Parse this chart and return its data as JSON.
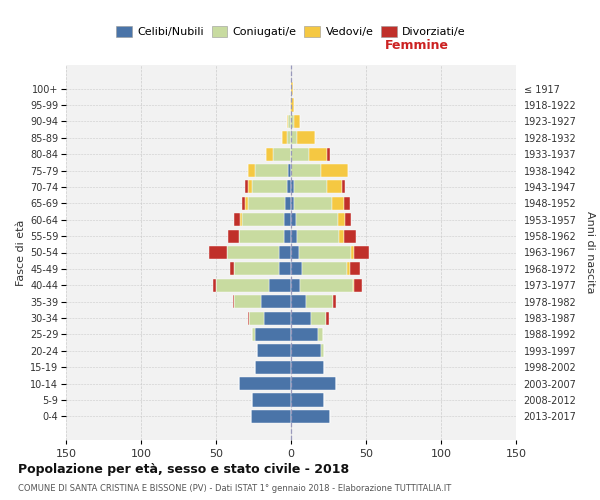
{
  "age_groups": [
    "0-4",
    "5-9",
    "10-14",
    "15-19",
    "20-24",
    "25-29",
    "30-34",
    "35-39",
    "40-44",
    "45-49",
    "50-54",
    "55-59",
    "60-64",
    "65-69",
    "70-74",
    "75-79",
    "80-84",
    "85-89",
    "90-94",
    "95-99",
    "100+"
  ],
  "birth_years": [
    "2013-2017",
    "2008-2012",
    "2003-2007",
    "1998-2002",
    "1993-1997",
    "1988-1992",
    "1983-1987",
    "1978-1982",
    "1973-1977",
    "1968-1972",
    "1963-1967",
    "1958-1962",
    "1953-1957",
    "1948-1952",
    "1943-1947",
    "1938-1942",
    "1933-1937",
    "1928-1932",
    "1923-1927",
    "1918-1922",
    "≤ 1917"
  ],
  "male": {
    "celibi": [
      27,
      26,
      35,
      24,
      23,
      24,
      18,
      20,
      15,
      8,
      8,
      5,
      5,
      4,
      3,
      2,
      0,
      0,
      0,
      0,
      0
    ],
    "coniugati": [
      0,
      0,
      0,
      0,
      0,
      2,
      10,
      18,
      35,
      30,
      35,
      30,
      28,
      25,
      23,
      22,
      12,
      3,
      2,
      0,
      0
    ],
    "vedovi": [
      0,
      0,
      0,
      0,
      0,
      0,
      0,
      0,
      0,
      0,
      0,
      0,
      1,
      2,
      3,
      5,
      5,
      3,
      1,
      1,
      0
    ],
    "divorziati": [
      0,
      0,
      0,
      0,
      0,
      0,
      1,
      1,
      2,
      3,
      12,
      7,
      4,
      2,
      2,
      0,
      0,
      0,
      0,
      0,
      0
    ]
  },
  "female": {
    "nubili": [
      26,
      22,
      30,
      22,
      20,
      18,
      13,
      10,
      6,
      7,
      5,
      4,
      3,
      2,
      2,
      0,
      0,
      0,
      0,
      0,
      0
    ],
    "coniugate": [
      0,
      0,
      0,
      0,
      2,
      3,
      10,
      18,
      35,
      30,
      35,
      28,
      28,
      25,
      22,
      20,
      12,
      4,
      2,
      0,
      0
    ],
    "vedove": [
      0,
      0,
      0,
      0,
      0,
      0,
      0,
      0,
      1,
      2,
      2,
      3,
      5,
      8,
      10,
      18,
      12,
      12,
      4,
      2,
      1
    ],
    "divorziate": [
      0,
      0,
      0,
      0,
      0,
      0,
      2,
      2,
      5,
      7,
      10,
      8,
      4,
      4,
      2,
      0,
      2,
      0,
      0,
      0,
      0
    ]
  },
  "colors": {
    "celibi": "#4a74a8",
    "coniugati": "#c8dba0",
    "vedovi": "#f5c842",
    "divorziati": "#c0302a"
  },
  "title": "Popolazione per età, sesso e stato civile - 2018",
  "subtitle": "COMUNE DI SANTA CRISTINA E BISSONE (PV) - Dati ISTAT 1° gennaio 2018 - Elaborazione TUTTITALIA.IT",
  "header_right": "Femmine",
  "ylabel_left": "Fasce di età",
  "ylabel_right": "Anni di nascita",
  "xlim": 150,
  "bg_plot": "#f2f2f2",
  "bg_fig": "#ffffff",
  "grid_color": "#cccccc"
}
